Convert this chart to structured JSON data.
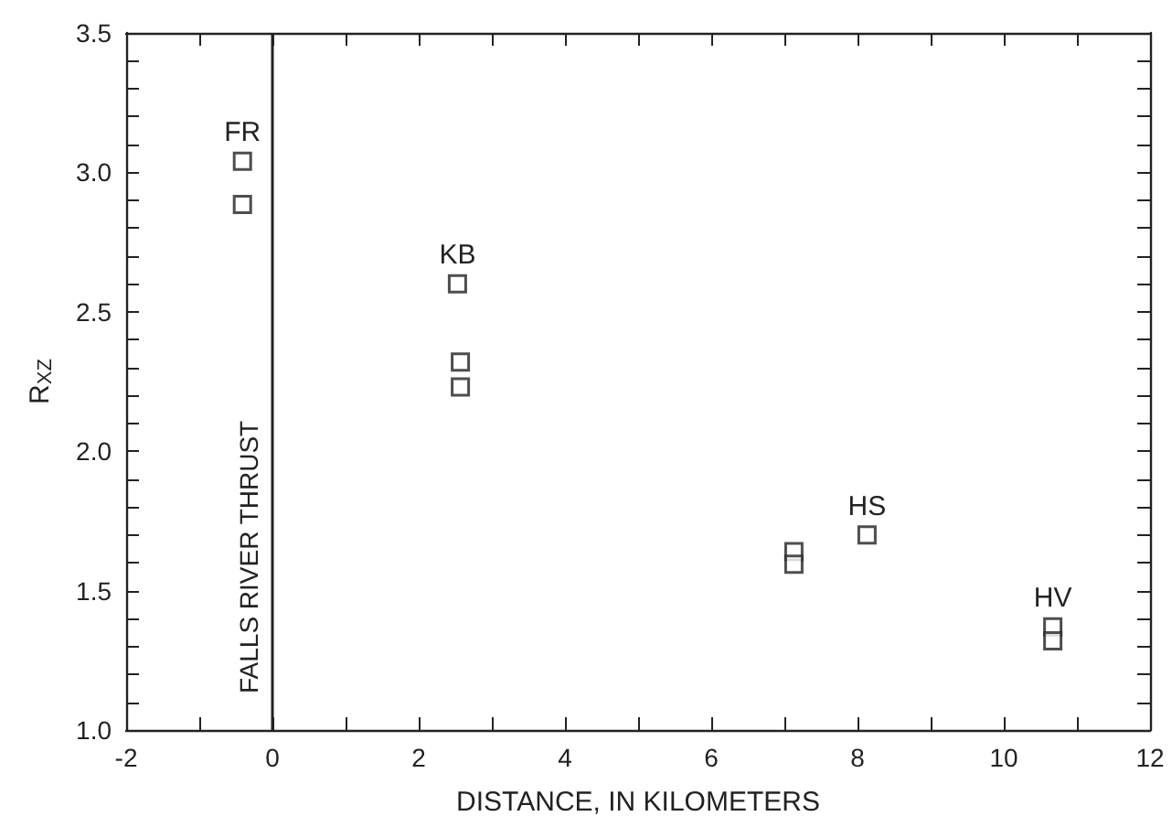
{
  "chart_data": {
    "type": "scatter",
    "xlabel": "DISTANCE, IN KILOMETERS",
    "ylabel": "R$_{XZ}$",
    "series": [
      {
        "color": "#222222",
        "x": [
          -0.41,
          -0.41,
          2.53,
          2.57,
          2.57,
          7.13,
          7.13,
          8.13,
          10.67,
          10.67
        ],
        "values": [
          3.04,
          2.885,
          2.6,
          2.32,
          2.23,
          1.64,
          1.595,
          1.7,
          1.37,
          1.32
        ]
      }
    ],
    "xlim": [
      -2,
      12
    ],
    "xticks": [
      -2,
      {
        "value": -1,
        "label": null
      },
      0,
      {
        "value": 1,
        "label": null
      },
      2,
      {
        "value": 3,
        "label": null
      },
      4,
      {
        "value": 5,
        "label": null
      },
      6,
      {
        "value": 7,
        "label": null
      },
      8,
      {
        "value": 9,
        "label": null
      },
      10,
      {
        "value": 11,
        "label": null
      },
      12
    ],
    "ylim": [
      1.0,
      3.5
    ],
    "yticks": [
      {
        "value": 1.0,
        "label": "1.0"
      },
      {
        "value": 1.1,
        "label": null
      },
      {
        "value": 1.2,
        "label": null
      },
      {
        "value": 1.3,
        "label": null
      },
      {
        "value": 1.4,
        "label": null
      },
      {
        "value": 1.5,
        "label": "1.5"
      },
      {
        "value": 1.6,
        "label": null
      },
      {
        "value": 1.7,
        "label": null
      },
      {
        "value": 1.8,
        "label": null
      },
      {
        "value": 1.9,
        "label": null
      },
      {
        "value": 2.0,
        "label": "2.0"
      },
      {
        "value": 2.1,
        "label": null
      },
      {
        "value": 2.2,
        "label": null
      },
      {
        "value": 2.3,
        "label": null
      },
      {
        "value": 2.4,
        "label": null
      },
      {
        "value": 2.5,
        "label": "2.5"
      },
      {
        "value": 2.6,
        "label": null
      },
      {
        "value": 2.7,
        "label": null
      },
      {
        "value": 2.8,
        "label": null
      },
      {
        "value": 2.9,
        "label": null
      },
      {
        "value": 3.0,
        "label": "3.0"
      },
      {
        "value": 3.1,
        "label": null
      },
      {
        "value": 3.2,
        "label": null
      },
      {
        "value": 3.3,
        "label": null
      },
      {
        "value": 3.4,
        "label": null
      },
      {
        "value": 3.5,
        "label": "3.5"
      }
    ],
    "ref_lines": [
      {
        "axis": "x",
        "value": 0,
        "label": "FALLS RIVER THRUST",
        "color": "#222222"
      }
    ],
    "annotations": [
      {
        "text": "FR",
        "x": -0.41,
        "y": 3.04
      },
      {
        "text": "KB",
        "x": 2.53,
        "y": 2.6
      },
      {
        "text": "HS",
        "x": 8.13,
        "y": 1.7
      },
      {
        "text": "HV",
        "x": 10.67,
        "y": 1.37
      }
    ],
    "marker": "square",
    "grid": false
  }
}
